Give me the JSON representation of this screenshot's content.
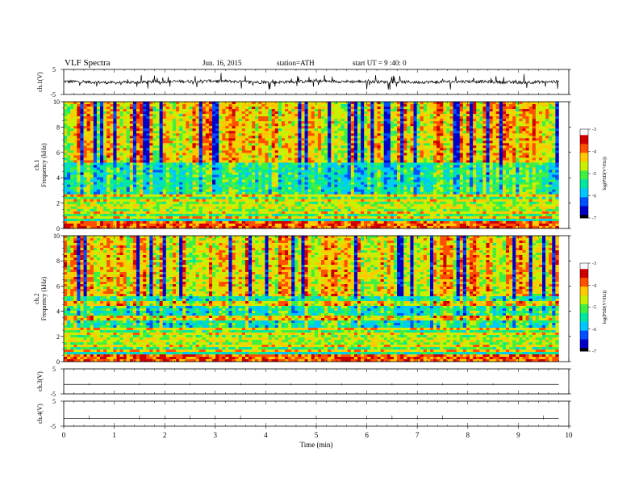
{
  "header": {
    "title": "VLF Spectra",
    "date": "Jun. 16, 2015",
    "station": "station=ATH",
    "start": "start UT =  9 :40: 0"
  },
  "chart_data": [
    {
      "type": "line",
      "panel": "ch1",
      "ylabel": "ch.1(V)",
      "ylim": [
        -5,
        5
      ],
      "yticks": [
        "5",
        "-5"
      ],
      "description_level": "noisy waveform near 0 V with bursts reaching ±3 V",
      "x": [
        0,
        1,
        2,
        3,
        4,
        5,
        6,
        7,
        8,
        9,
        9.8
      ],
      "values": [
        0.2,
        -0.3,
        0.1,
        0.4,
        -0.2,
        0.3,
        0.1,
        -0.1,
        0.2,
        -0.2,
        0.1
      ]
    },
    {
      "type": "heatmap",
      "panel": "ch1_spectrogram",
      "ylabel_lines": [
        "ch.1",
        "Frequency (kHz)"
      ],
      "ylim": [
        0,
        10
      ],
      "yticks": [
        "0",
        "2",
        "4",
        "6",
        "8",
        "10"
      ],
      "xlim": [
        0,
        9.8
      ],
      "colorbar": {
        "label": "log(PSD(V²/Hz))",
        "ticks": [
          "-3",
          "-4",
          "-5",
          "-6",
          "-7"
        ],
        "range": [
          -7,
          -3
        ]
      }
    },
    {
      "type": "heatmap",
      "panel": "ch2_spectrogram",
      "ylabel_lines": [
        "ch.2",
        "Frequency (kHz)"
      ],
      "ylim": [
        0,
        10
      ],
      "yticks": [
        "0",
        "2",
        "4",
        "6",
        "8",
        "10"
      ],
      "xlim": [
        0,
        9.8
      ],
      "colorbar": {
        "label": "log(PSD(V²/Hz))",
        "ticks": [
          "-3",
          "-4",
          "-5",
          "-6",
          "-7"
        ],
        "range": [
          -7,
          -3
        ]
      }
    },
    {
      "type": "line",
      "panel": "ch3",
      "ylabel": "ch.3(V)",
      "ylim": [
        -5,
        5
      ],
      "yticks": [
        "5",
        "-5"
      ],
      "x": [
        0,
        9.8
      ],
      "values": [
        -1.2,
        -1.2
      ]
    },
    {
      "type": "line",
      "panel": "ch4",
      "ylabel": "ch.4(V)",
      "ylim": [
        -5,
        5
      ],
      "yticks": [
        "5",
        "-5"
      ],
      "x": [
        0,
        9.8
      ],
      "values": [
        -2.0,
        -2.0
      ]
    }
  ],
  "xaxis": {
    "label": "Time (min)",
    "ticks": [
      "0",
      "1",
      "2",
      "3",
      "4",
      "5",
      "6",
      "7",
      "8",
      "9",
      "10"
    ],
    "xlim": [
      0,
      10
    ]
  },
  "colors": {
    "colormap": [
      "#000000",
      "#0000c8",
      "#0050ff",
      "#00c8ff",
      "#00e8a0",
      "#40f040",
      "#c8f000",
      "#ffc800",
      "#ff5000",
      "#d00000",
      "#ffffff"
    ]
  }
}
